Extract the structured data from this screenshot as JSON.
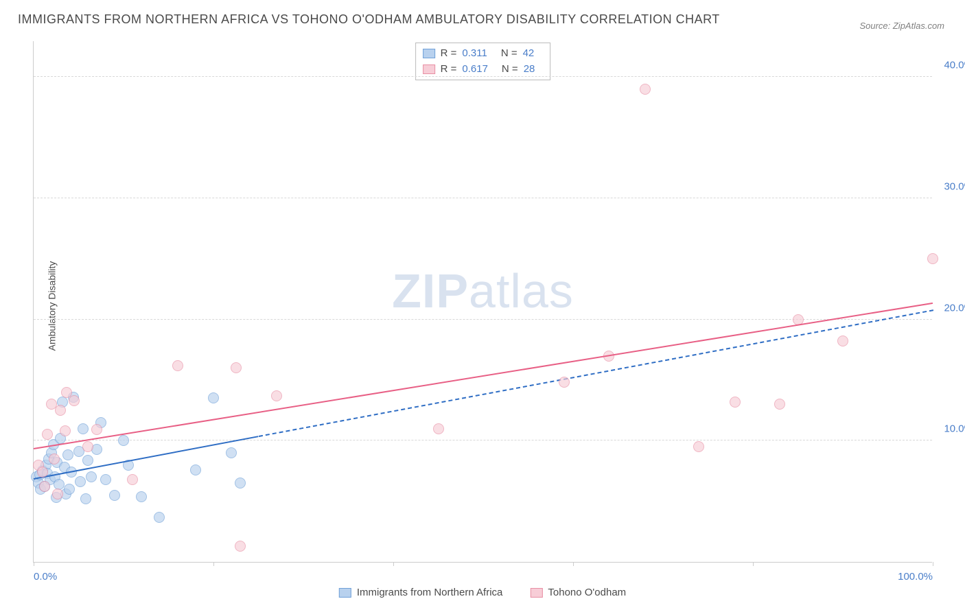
{
  "title": "IMMIGRANTS FROM NORTHERN AFRICA VS TOHONO O'ODHAM AMBULATORY DISABILITY CORRELATION CHART",
  "source": "Source: ZipAtlas.com",
  "y_axis_label": "Ambulatory Disability",
  "watermark": {
    "bold": "ZIP",
    "rest": "atlas"
  },
  "chart": {
    "type": "scatter",
    "xlim": [
      0,
      100
    ],
    "ylim": [
      0,
      43
    ],
    "y_ticks": [
      10,
      20,
      30,
      40
    ],
    "y_tick_labels": [
      "10.0%",
      "20.0%",
      "30.0%",
      "40.0%"
    ],
    "x_ticks": [
      0,
      20,
      40,
      60,
      80,
      100
    ],
    "x_tick_labels_shown": {
      "0": "0.0%",
      "100": "100.0%"
    },
    "grid_color": "#d8d8d8",
    "axis_color": "#cccccc",
    "background_color": "#ffffff",
    "tick_label_color": "#4a7ec9",
    "tick_label_fontsize": 15,
    "title_color": "#4a4a4a",
    "title_fontsize": 18,
    "marker_radius": 8,
    "marker_opacity": 0.65,
    "series": [
      {
        "name": "Immigrants from Northern Africa",
        "fill_color": "#b8d1ee",
        "stroke_color": "#6fa0d8",
        "line_color": "#2e6dc4",
        "r": "0.311",
        "n": "42",
        "trend": {
          "x1": 0,
          "y1": 6.8,
          "x2_solid": 25,
          "y2_solid": 10.3,
          "x2_dash": 100,
          "y2_dash": 20.7
        },
        "points": [
          [
            0.3,
            7.0
          ],
          [
            0.5,
            6.5
          ],
          [
            0.7,
            7.2
          ],
          [
            0.8,
            6.0
          ],
          [
            1.0,
            7.5
          ],
          [
            1.2,
            6.2
          ],
          [
            1.4,
            8.0
          ],
          [
            1.5,
            7.3
          ],
          [
            1.7,
            8.5
          ],
          [
            1.8,
            6.8
          ],
          [
            2.0,
            9.0
          ],
          [
            2.2,
            9.7
          ],
          [
            2.4,
            7.0
          ],
          [
            2.5,
            5.3
          ],
          [
            2.6,
            8.2
          ],
          [
            2.8,
            6.4
          ],
          [
            3.0,
            10.2
          ],
          [
            3.2,
            13.2
          ],
          [
            3.4,
            7.8
          ],
          [
            3.6,
            5.6
          ],
          [
            3.8,
            8.8
          ],
          [
            4.0,
            6.0
          ],
          [
            4.2,
            7.4
          ],
          [
            4.4,
            13.6
          ],
          [
            5.0,
            9.1
          ],
          [
            5.2,
            6.6
          ],
          [
            5.5,
            11.0
          ],
          [
            5.8,
            5.2
          ],
          [
            6.0,
            8.4
          ],
          [
            6.4,
            7.0
          ],
          [
            7.0,
            9.3
          ],
          [
            7.5,
            11.5
          ],
          [
            8.0,
            6.8
          ],
          [
            9.0,
            5.5
          ],
          [
            10.0,
            10.0
          ],
          [
            10.5,
            8.0
          ],
          [
            12.0,
            5.4
          ],
          [
            14.0,
            3.7
          ],
          [
            18.0,
            7.6
          ],
          [
            20.0,
            13.5
          ],
          [
            22.0,
            9.0
          ],
          [
            23.0,
            6.5
          ]
        ]
      },
      {
        "name": "Tohono O'odham",
        "fill_color": "#f7cdd7",
        "stroke_color": "#e88fa4",
        "line_color": "#e85f85",
        "r": "0.617",
        "n": "28",
        "trend": {
          "x1": 0,
          "y1": 9.3,
          "x2_solid": 100,
          "y2_solid": 21.3,
          "x2_dash": null,
          "y2_dash": null
        },
        "points": [
          [
            0.5,
            8.0
          ],
          [
            1.0,
            7.4
          ],
          [
            1.2,
            6.2
          ],
          [
            1.5,
            10.5
          ],
          [
            2.0,
            13.0
          ],
          [
            2.3,
            8.5
          ],
          [
            2.7,
            5.6
          ],
          [
            3.0,
            12.5
          ],
          [
            3.5,
            10.8
          ],
          [
            3.7,
            14.0
          ],
          [
            4.5,
            13.3
          ],
          [
            6.0,
            9.5
          ],
          [
            7.0,
            10.9
          ],
          [
            11.0,
            6.8
          ],
          [
            16.0,
            16.2
          ],
          [
            22.5,
            16.0
          ],
          [
            23.0,
            1.3
          ],
          [
            27.0,
            13.7
          ],
          [
            59.0,
            14.8
          ],
          [
            64.0,
            17.0
          ],
          [
            68.0,
            39.0
          ],
          [
            74.0,
            9.5
          ],
          [
            78.0,
            13.2
          ],
          [
            83.0,
            13.0
          ],
          [
            85.0,
            20.0
          ],
          [
            90.0,
            18.2
          ],
          [
            100.0,
            25.0
          ],
          [
            45.0,
            11.0
          ]
        ]
      }
    ]
  },
  "stats_legend_labels": {
    "r": "R  =",
    "n": "N  ="
  },
  "bottom_legend": [
    {
      "swatch_fill": "#b8d1ee",
      "swatch_stroke": "#6fa0d8",
      "label": "Immigrants from Northern Africa"
    },
    {
      "swatch_fill": "#f7cdd7",
      "swatch_stroke": "#e88fa4",
      "label": "Tohono O'odham"
    }
  ]
}
